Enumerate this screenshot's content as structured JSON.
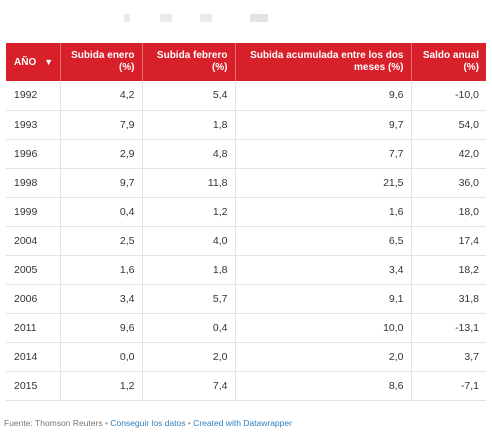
{
  "table": {
    "headers": [
      {
        "label": "AÑO",
        "sort_icon": "▼"
      },
      {
        "label": "Subida enero (%)"
      },
      {
        "label": "Subida febrero (%)"
      },
      {
        "label": "Subida acumulada entre los dos meses (%)"
      },
      {
        "label": "Saldo anual (%)"
      }
    ],
    "rows": [
      [
        "1992",
        "4,2",
        "5,4",
        "9,6",
        "-10,0"
      ],
      [
        "1993",
        "7,9",
        "1,8",
        "9,7",
        "54,0"
      ],
      [
        "1996",
        "2,9",
        "4,8",
        "7,7",
        "42,0"
      ],
      [
        "1998",
        "9,7",
        "11,8",
        "21,5",
        "36,0"
      ],
      [
        "1999",
        "0,4",
        "1,2",
        "1,6",
        "18,0"
      ],
      [
        "2004",
        "2,5",
        "4,0",
        "6,5",
        "17,4"
      ],
      [
        "2005",
        "1,6",
        "1,8",
        "3,4",
        "18,2"
      ],
      [
        "2006",
        "3,4",
        "5,7",
        "9,1",
        "31,8"
      ],
      [
        "2011",
        "9,6",
        "0,4",
        "10,0",
        "-13,1"
      ],
      [
        "2014",
        "0,0",
        "2,0",
        "2,0",
        "3,7"
      ],
      [
        "2015",
        "1,2",
        "7,4",
        "8,6",
        "-7,1"
      ]
    ]
  },
  "footer": {
    "source": "Fuente: Thomson Reuters",
    "separator": "•",
    "get_data": "Conseguir los datos",
    "created_with": "Created with Datawrapper"
  },
  "colors": {
    "header_bg": "#d7202a",
    "header_text": "#ffffff",
    "link": "#2d7fc1"
  }
}
